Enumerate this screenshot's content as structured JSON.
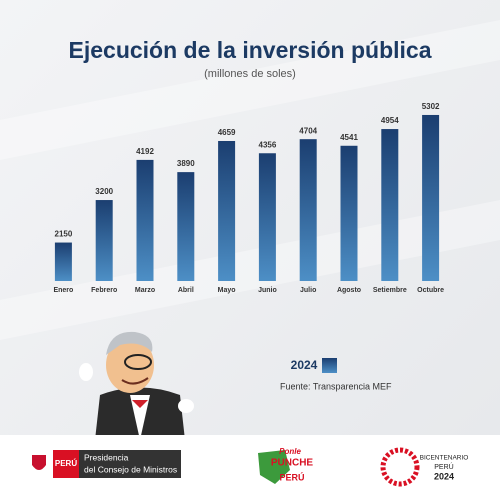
{
  "chart_data": {
    "type": "bar",
    "title": "Ejecución de la inversión pública",
    "subtitle": "(millones de soles)",
    "categories": [
      "Enero",
      "Febrero",
      "Marzo",
      "Abril",
      "Mayo",
      "Junio",
      "Julio",
      "Agosto",
      "Setiembre",
      "Octubre"
    ],
    "series": [
      {
        "name": "2024",
        "color": "#1f4b82",
        "values": [
          2150,
          3200,
          4192,
          3890,
          4659,
          4356,
          4704,
          4541,
          4954,
          5302
        ]
      }
    ],
    "ylim": [
      1200,
      5400
    ],
    "source": "Fuente: Transparencia MEF"
  },
  "footer": {
    "peru": "PERÚ",
    "institution": [
      "Presidencia",
      "del Consejo de Ministros"
    ],
    "campaign": [
      "Ponle",
      "PUNCHE",
      "PERÚ"
    ],
    "bicentenario": [
      "BICENTENARIO",
      "PERÚ",
      "2024"
    ]
  }
}
